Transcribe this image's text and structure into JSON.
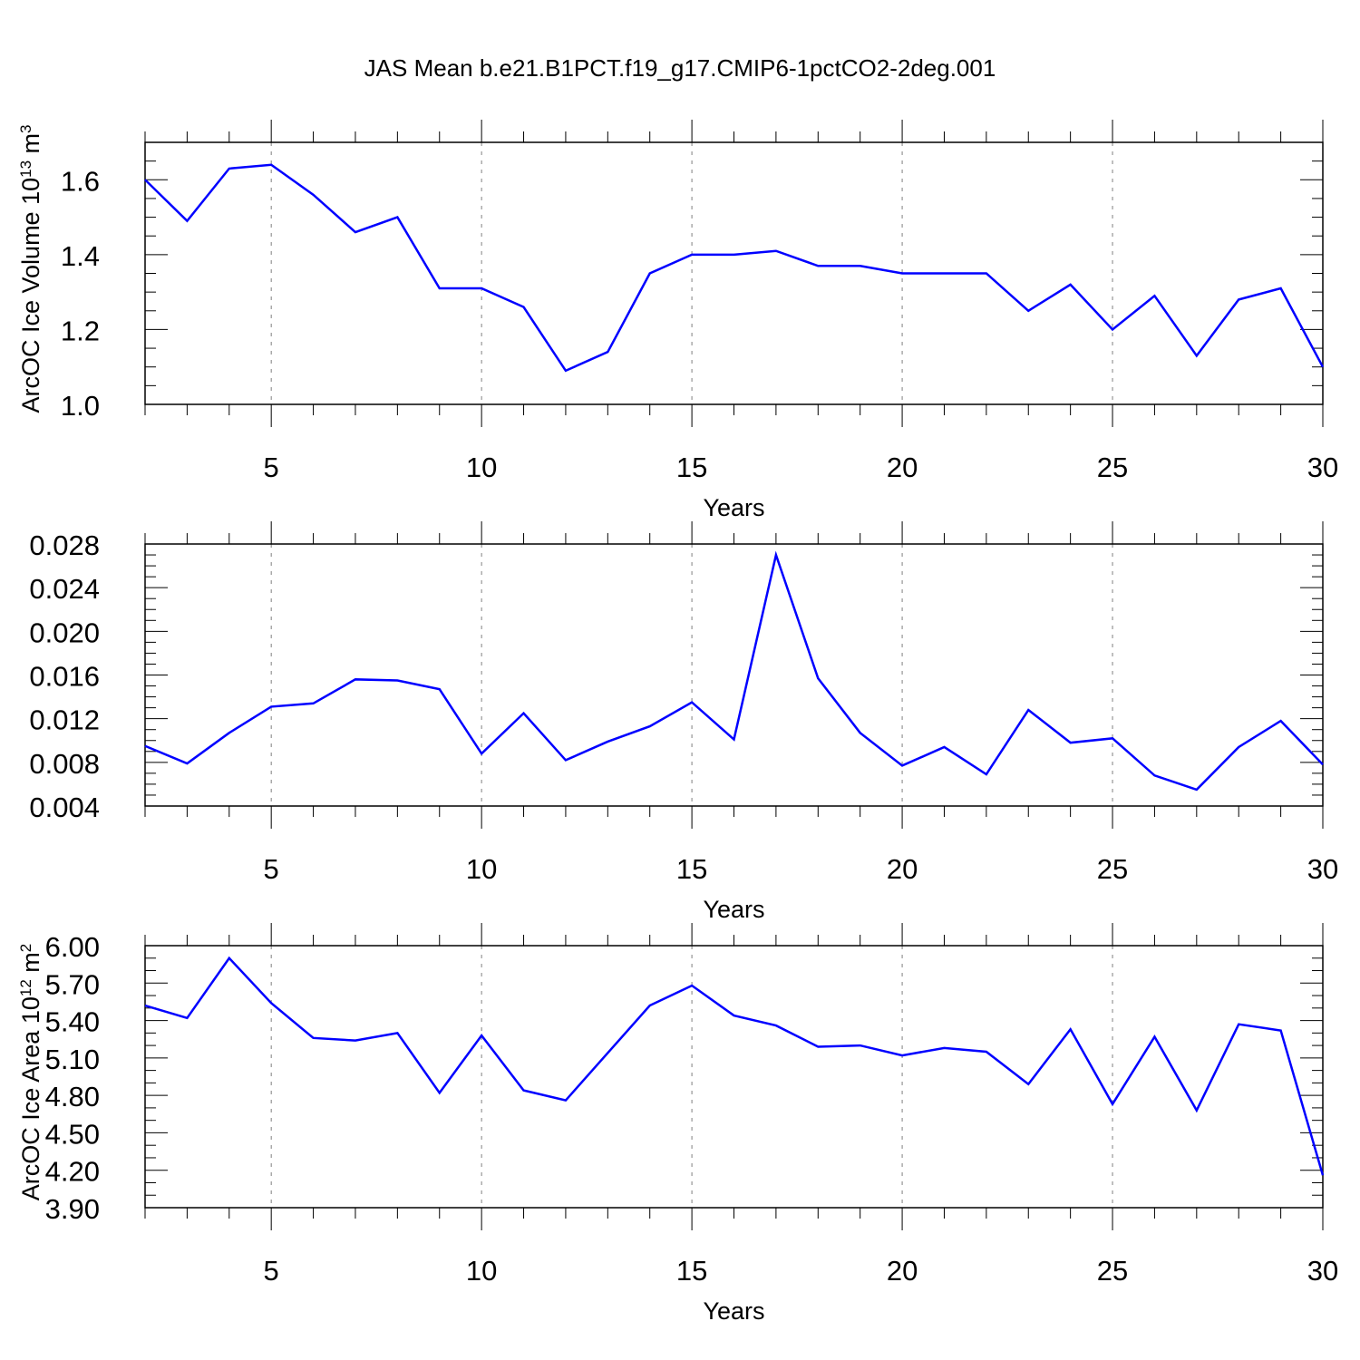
{
  "figure": {
    "title": "JAS Mean b.e21.B1PCT.f19_g17.CMIP6-1pctCO2-2deg.001"
  },
  "style": {
    "line_color": "#0000ff",
    "axis_color": "#000000",
    "grid_color": "#808080"
  },
  "chart_data": [
    {
      "type": "line",
      "title": "",
      "xlabel": "Years",
      "ylabel_text": "ArcOC Ice Volume 10",
      "ylabel_exp": "13",
      "ylabel_unit": " m",
      "ylabel_unit_exp": "3",
      "xlim": [
        2,
        30
      ],
      "ylim": [
        1.0,
        1.7
      ],
      "xticks": [
        5,
        10,
        15,
        20,
        25,
        30
      ],
      "xtick_labels": [
        "5",
        "10",
        "15",
        "20",
        "25",
        "30"
      ],
      "yticks": [
        1.0,
        1.2,
        1.4,
        1.6
      ],
      "ytick_labels": [
        "1.0",
        "1.2",
        "1.4",
        "1.6"
      ],
      "y_minor_step": 0.05,
      "grid": "vertical dashed at major x ticks",
      "x": [
        2,
        3,
        4,
        5,
        6,
        7,
        8,
        9,
        10,
        11,
        12,
        13,
        14,
        15,
        16,
        17,
        18,
        19,
        20,
        21,
        22,
        23,
        24,
        25,
        26,
        27,
        28,
        29,
        30
      ],
      "series": [
        {
          "values": [
            1.6,
            1.49,
            1.63,
            1.64,
            1.56,
            1.46,
            1.5,
            1.31,
            1.31,
            1.26,
            1.09,
            1.14,
            1.35,
            1.4,
            1.4,
            1.41,
            1.37,
            1.37,
            1.35,
            1.35,
            1.35,
            1.25,
            1.32,
            1.2,
            1.29,
            1.13,
            1.28,
            1.31,
            1.1
          ]
        }
      ]
    },
    {
      "type": "line",
      "title": "",
      "xlabel": "Years",
      "ylabel_text": "",
      "ylabel_exp": "",
      "ylabel_unit": "",
      "ylabel_unit_exp": "",
      "xlim": [
        2,
        30
      ],
      "ylim": [
        0.004,
        0.028
      ],
      "xticks": [
        5,
        10,
        15,
        20,
        25,
        30
      ],
      "xtick_labels": [
        "5",
        "10",
        "15",
        "20",
        "25",
        "30"
      ],
      "yticks": [
        0.004,
        0.008,
        0.012,
        0.016,
        0.02,
        0.024,
        0.028
      ],
      "ytick_labels": [
        "0.004",
        "0.008",
        "0.012",
        "0.016",
        "0.020",
        "0.024",
        "0.028"
      ],
      "y_minor_step": 0.001,
      "grid": "vertical dashed at major x ticks",
      "x": [
        2,
        3,
        4,
        5,
        6,
        7,
        8,
        9,
        10,
        11,
        12,
        13,
        14,
        15,
        16,
        17,
        18,
        19,
        20,
        21,
        22,
        23,
        24,
        25,
        26,
        27,
        28,
        29,
        30
      ],
      "series": [
        {
          "values": [
            0.0095,
            0.0079,
            0.0107,
            0.0131,
            0.0134,
            0.0156,
            0.0155,
            0.0147,
            0.0088,
            0.0125,
            0.0082,
            0.0099,
            0.0113,
            0.0135,
            0.0101,
            0.027,
            0.0157,
            0.0107,
            0.0077,
            0.0094,
            0.0069,
            0.0128,
            0.0098,
            0.0102,
            0.0068,
            0.0055,
            0.0094,
            0.0118,
            0.0078
          ]
        }
      ]
    },
    {
      "type": "line",
      "title": "",
      "xlabel": "Years",
      "ylabel_text": "ArcOC Ice Area 10",
      "ylabel_exp": "12",
      "ylabel_unit": " m",
      "ylabel_unit_exp": "2",
      "xlim": [
        2,
        30
      ],
      "ylim": [
        3.9,
        6.0
      ],
      "xticks": [
        5,
        10,
        15,
        20,
        25,
        30
      ],
      "xtick_labels": [
        "5",
        "10",
        "15",
        "20",
        "25",
        "30"
      ],
      "yticks": [
        3.9,
        4.2,
        4.5,
        4.8,
        5.1,
        5.4,
        5.7,
        6.0
      ],
      "ytick_labels": [
        "3.90",
        "4.20",
        "4.50",
        "4.80",
        "5.10",
        "5.40",
        "5.70",
        "6.00"
      ],
      "y_minor_step": 0.1,
      "grid": "vertical dashed at major x ticks",
      "x": [
        2,
        3,
        4,
        5,
        6,
        7,
        8,
        9,
        10,
        11,
        12,
        13,
        14,
        15,
        16,
        17,
        18,
        19,
        20,
        21,
        22,
        23,
        24,
        25,
        26,
        27,
        28,
        29,
        30
      ],
      "series": [
        {
          "values": [
            5.52,
            5.42,
            5.9,
            5.54,
            5.26,
            5.24,
            5.3,
            4.82,
            5.28,
            4.84,
            4.76,
            5.14,
            5.52,
            5.68,
            5.44,
            5.36,
            5.19,
            5.2,
            5.12,
            5.18,
            5.15,
            4.89,
            5.33,
            4.73,
            5.27,
            4.68,
            5.37,
            5.32,
            4.16
          ]
        }
      ]
    }
  ]
}
